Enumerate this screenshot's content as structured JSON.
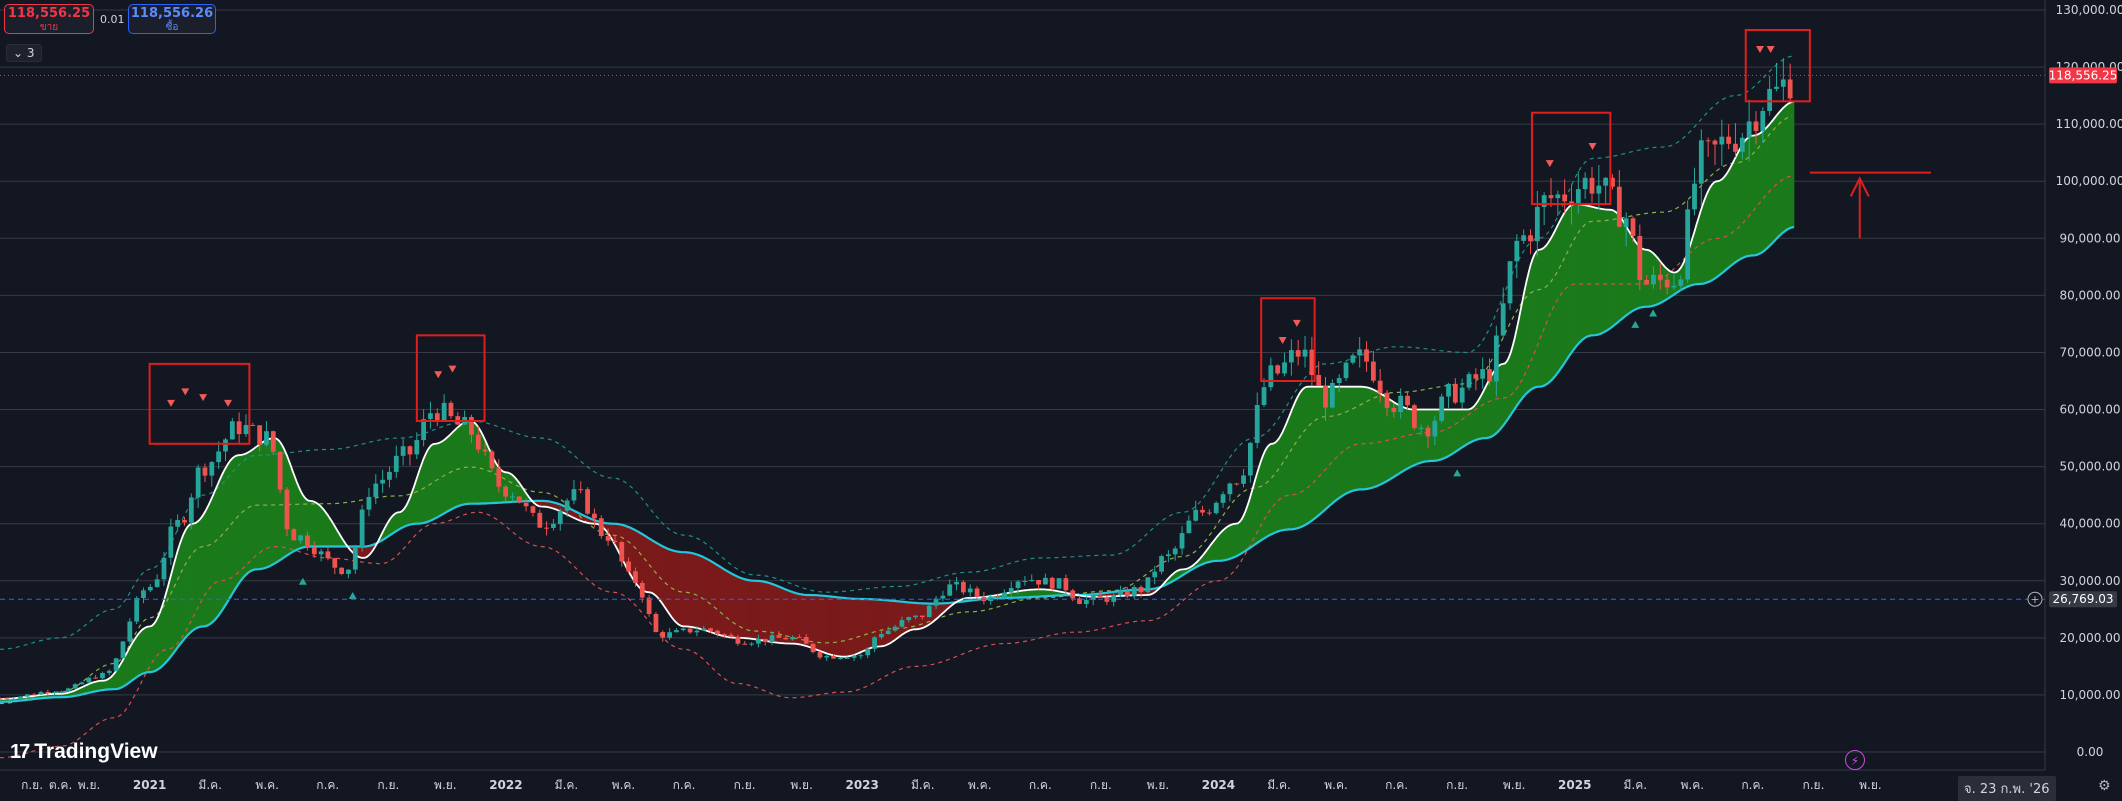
{
  "header": {
    "sell_price": "118,556.25",
    "sell_label": "ขาย",
    "buy_price": "118,556.26",
    "buy_label": "ซื้อ",
    "spread": "0.01",
    "legend_toggle": "⌄ 3"
  },
  "brand": {
    "logo_mark": "17",
    "logo_text": "TradingView"
  },
  "crosshair_date": "จ. 23 ก.พ. '26",
  "colors": {
    "background": "#131722",
    "up": "#26a69a",
    "down": "#ef5350",
    "fill_up": "#1b7a1b",
    "fill_down": "#7a1a1a",
    "fast_ma": "#ffffff",
    "slow_ma": "#26c6da",
    "annotation": "#e01e1e"
  },
  "icons": {
    "bolt": "bolt-icon",
    "settings": "gear-icon"
  },
  "chart_data": {
    "type": "candlestick",
    "timeframe": "weekly",
    "last_price_label": "118,556.25",
    "last_price": 118556.25,
    "crosshair_price_label": "26,769.03",
    "crosshair_price": 26769.03,
    "y_ticks": [
      "0.00",
      "10,000.00",
      "20,000.00",
      "30,000.00",
      "40,000.00",
      "50,000.00",
      "60,000.00",
      "70,000.00",
      "80,000.00",
      "90,000.00",
      "100,000.00",
      "110,000.00",
      "120,000.00",
      "130,000.00"
    ],
    "ylim": [
      0,
      130000
    ],
    "x_ticks": [
      {
        "label": "ต.ค.",
        "t": 2020.75
      },
      {
        "label": "ก.ค.",
        "t": 2020.5
      },
      {
        "label": "ก.ย.",
        "t": 2020.67
      },
      {
        "label": "พ.ย.",
        "t": 2020.83
      },
      {
        "label": "2021",
        "t": 2021.0
      },
      {
        "label": "มี.ค.",
        "t": 2021.17
      },
      {
        "label": "พ.ค.",
        "t": 2021.33
      },
      {
        "label": "ก.ค.",
        "t": 2021.5
      },
      {
        "label": "ก.ย.",
        "t": 2021.67
      },
      {
        "label": "พ.ย.",
        "t": 2021.83
      },
      {
        "label": "2022",
        "t": 2022.0
      },
      {
        "label": "มี.ค.",
        "t": 2022.17
      },
      {
        "label": "พ.ค.",
        "t": 2022.33
      },
      {
        "label": "ก.ค.",
        "t": 2022.5
      },
      {
        "label": "ก.ย.",
        "t": 2022.67
      },
      {
        "label": "พ.ย.",
        "t": 2022.83
      },
      {
        "label": "2023",
        "t": 2023.0
      },
      {
        "label": "มี.ค.",
        "t": 2023.17
      },
      {
        "label": "พ.ค.",
        "t": 2023.33
      },
      {
        "label": "ก.ค.",
        "t": 2023.5
      },
      {
        "label": "ก.ย.",
        "t": 2023.67
      },
      {
        "label": "พ.ย.",
        "t": 2023.83
      },
      {
        "label": "2024",
        "t": 2024.0
      },
      {
        "label": "มี.ค.",
        "t": 2024.17
      },
      {
        "label": "พ.ค.",
        "t": 2024.33
      },
      {
        "label": "ก.ค.",
        "t": 2024.5
      },
      {
        "label": "ก.ย.",
        "t": 2024.67
      },
      {
        "label": "พ.ย.",
        "t": 2024.83
      },
      {
        "label": "2025",
        "t": 2025.0
      },
      {
        "label": "มี.ค.",
        "t": 2025.17
      },
      {
        "label": "พ.ค.",
        "t": 2025.33
      },
      {
        "label": "ก.ค.",
        "t": 2025.5
      },
      {
        "label": "ก.ย.",
        "t": 2025.67
      },
      {
        "label": "พ.ย.",
        "t": 2025.83
      }
    ],
    "anchors": [
      [
        2020.58,
        9400
      ],
      [
        2020.75,
        10800
      ],
      [
        2020.87,
        13500
      ],
      [
        2021.0,
        29000
      ],
      [
        2021.08,
        40000
      ],
      [
        2021.15,
        50000
      ],
      [
        2021.25,
        57000
      ],
      [
        2021.33,
        55000
      ],
      [
        2021.4,
        38000
      ],
      [
        2021.55,
        32000
      ],
      [
        2021.63,
        47000
      ],
      [
        2021.72,
        52000
      ],
      [
        2021.8,
        60000
      ],
      [
        2021.88,
        57000
      ],
      [
        2022.0,
        46000
      ],
      [
        2022.1,
        40000
      ],
      [
        2022.2,
        45000
      ],
      [
        2022.28,
        38000
      ],
      [
        2022.36,
        30000
      ],
      [
        2022.43,
        20500
      ],
      [
        2022.55,
        21500
      ],
      [
        2022.67,
        19500
      ],
      [
        2022.8,
        20000
      ],
      [
        2022.9,
        16800
      ],
      [
        2023.0,
        17000
      ],
      [
        2023.05,
        21000
      ],
      [
        2023.15,
        23500
      ],
      [
        2023.25,
        29000
      ],
      [
        2023.35,
        27000
      ],
      [
        2023.45,
        30500
      ],
      [
        2023.55,
        29500
      ],
      [
        2023.62,
        26500
      ],
      [
        2023.7,
        27000
      ],
      [
        2023.78,
        28500
      ],
      [
        2023.85,
        34000
      ],
      [
        2023.95,
        42000
      ],
      [
        2024.05,
        48000
      ],
      [
        2024.15,
        66000
      ],
      [
        2024.23,
        70000
      ],
      [
        2024.3,
        62000
      ],
      [
        2024.4,
        69000
      ],
      [
        2024.5,
        61000
      ],
      [
        2024.58,
        57000
      ],
      [
        2024.66,
        63000
      ],
      [
        2024.75,
        66000
      ],
      [
        2024.85,
        90000
      ],
      [
        2024.93,
        97000
      ],
      [
        2025.05,
        100000
      ],
      [
        2025.13,
        95000
      ],
      [
        2025.2,
        82000
      ],
      [
        2025.28,
        83000
      ],
      [
        2025.36,
        104000
      ],
      [
        2025.45,
        108000
      ],
      [
        2025.55,
        115000
      ],
      [
        2025.62,
        118600
      ]
    ],
    "fast_ma_anchors": [
      [
        2020.58,
        9300
      ],
      [
        2020.75,
        10200
      ],
      [
        2020.87,
        12500
      ],
      [
        2021.0,
        22000
      ],
      [
        2021.12,
        40000
      ],
      [
        2021.25,
        52000
      ],
      [
        2021.35,
        55000
      ],
      [
        2021.45,
        44000
      ],
      [
        2021.6,
        34000
      ],
      [
        2021.7,
        42000
      ],
      [
        2021.8,
        54000
      ],
      [
        2021.9,
        58000
      ],
      [
        2022.0,
        49000
      ],
      [
        2022.1,
        43000
      ],
      [
        2022.25,
        40000
      ],
      [
        2022.4,
        28000
      ],
      [
        2022.5,
        22000
      ],
      [
        2022.65,
        20000
      ],
      [
        2022.8,
        19000
      ],
      [
        2022.95,
        16700
      ],
      [
        2023.05,
        18500
      ],
      [
        2023.15,
        21500
      ],
      [
        2023.3,
        27000
      ],
      [
        2023.5,
        28500
      ],
      [
        2023.65,
        27200
      ],
      [
        2023.8,
        27500
      ],
      [
        2023.9,
        32000
      ],
      [
        2024.05,
        40000
      ],
      [
        2024.15,
        54000
      ],
      [
        2024.25,
        64000
      ],
      [
        2024.4,
        64000
      ],
      [
        2024.55,
        60000
      ],
      [
        2024.7,
        60000
      ],
      [
        2024.8,
        68000
      ],
      [
        2024.9,
        88000
      ],
      [
        2025.0,
        96000
      ],
      [
        2025.1,
        95000
      ],
      [
        2025.2,
        88000
      ],
      [
        2025.28,
        84000
      ],
      [
        2025.4,
        100000
      ],
      [
        2025.5,
        108000
      ],
      [
        2025.62,
        114000
      ]
    ],
    "slow_ma_anchors": [
      [
        2020.58,
        8800
      ],
      [
        2020.75,
        9600
      ],
      [
        2020.9,
        11000
      ],
      [
        2021.0,
        14000
      ],
      [
        2021.15,
        22000
      ],
      [
        2021.3,
        32000
      ],
      [
        2021.45,
        36000
      ],
      [
        2021.6,
        36000
      ],
      [
        2021.75,
        40000
      ],
      [
        2021.9,
        43500
      ],
      [
        2022.1,
        44000
      ],
      [
        2022.3,
        40000
      ],
      [
        2022.5,
        35000
      ],
      [
        2022.7,
        30000
      ],
      [
        2022.85,
        27500
      ],
      [
        2023.0,
        26800
      ],
      [
        2023.2,
        26000
      ],
      [
        2023.4,
        27000
      ],
      [
        2023.6,
        27500
      ],
      [
        2023.8,
        28500
      ],
      [
        2024.0,
        33500
      ],
      [
        2024.2,
        39000
      ],
      [
        2024.4,
        46000
      ],
      [
        2024.6,
        51000
      ],
      [
        2024.75,
        55000
      ],
      [
        2024.9,
        64000
      ],
      [
        2025.05,
        73000
      ],
      [
        2025.2,
        78000
      ],
      [
        2025.35,
        82000
      ],
      [
        2025.5,
        87000
      ],
      [
        2025.62,
        92000
      ]
    ],
    "upper_band_anchors": [
      [
        2020.58,
        18000
      ],
      [
        2020.75,
        20000
      ],
      [
        2020.9,
        25000
      ],
      [
        2021.0,
        32000
      ],
      [
        2021.15,
        45000
      ],
      [
        2021.3,
        52000
      ],
      [
        2021.5,
        53000
      ],
      [
        2021.7,
        55000
      ],
      [
        2021.9,
        58000
      ],
      [
        2022.1,
        55000
      ],
      [
        2022.3,
        48000
      ],
      [
        2022.5,
        38000
      ],
      [
        2022.7,
        31000
      ],
      [
        2022.9,
        28000
      ],
      [
        2023.1,
        29000
      ],
      [
        2023.3,
        31500
      ],
      [
        2023.5,
        34000
      ],
      [
        2023.7,
        34500
      ],
      [
        2023.9,
        42000
      ],
      [
        2024.1,
        55000
      ],
      [
        2024.3,
        68000
      ],
      [
        2024.5,
        71000
      ],
      [
        2024.7,
        70000
      ],
      [
        2024.9,
        90000
      ],
      [
        2025.05,
        104000
      ],
      [
        2025.25,
        106000
      ],
      [
        2025.45,
        115000
      ],
      [
        2025.62,
        122000
      ]
    ],
    "lower_band_anchors": [
      [
        2020.58,
        -1000
      ],
      [
        2020.75,
        1000
      ],
      [
        2020.9,
        6000
      ],
      [
        2021.05,
        18000
      ],
      [
        2021.2,
        30000
      ],
      [
        2021.35,
        36000
      ],
      [
        2021.5,
        34000
      ],
      [
        2021.65,
        33000
      ],
      [
        2021.8,
        40000
      ],
      [
        2021.92,
        42000
      ],
      [
        2022.1,
        36000
      ],
      [
        2022.3,
        28000
      ],
      [
        2022.5,
        18000
      ],
      [
        2022.65,
        12000
      ],
      [
        2022.8,
        9500
      ],
      [
        2022.95,
        10500
      ],
      [
        2023.15,
        15000
      ],
      [
        2023.4,
        19000
      ],
      [
        2023.6,
        21000
      ],
      [
        2023.8,
        23000
      ],
      [
        2024.0,
        30000
      ],
      [
        2024.2,
        45000
      ],
      [
        2024.4,
        54000
      ],
      [
        2024.6,
        56000
      ],
      [
        2024.8,
        62000
      ],
      [
        2025.0,
        82000
      ],
      [
        2025.2,
        82000
      ],
      [
        2025.4,
        90000
      ],
      [
        2025.62,
        101000
      ]
    ],
    "annotation_boxes": [
      {
        "t0": 2021.0,
        "t1": 2021.28,
        "p0": 54000,
        "p1": 68000
      },
      {
        "t0": 2021.75,
        "t1": 2021.94,
        "p0": 58000,
        "p1": 73000
      },
      {
        "t0": 2024.12,
        "t1": 2024.27,
        "p0": 65000,
        "p1": 79500
      },
      {
        "t0": 2024.88,
        "t1": 2025.1,
        "p0": 96000,
        "p1": 112000
      },
      {
        "t0": 2025.48,
        "t1": 2025.66,
        "p0": 114000,
        "p1": 126500
      }
    ],
    "annotation_hline": {
      "t0": 2025.66,
      "t1": 2026.0,
      "p": 101500
    },
    "annotation_arrow": {
      "t": 2025.8,
      "p0": 90000,
      "p1": 100500
    },
    "down_markers": [
      [
        2021.06,
        61000
      ],
      [
        2021.1,
        63000
      ],
      [
        2021.15,
        62000
      ],
      [
        2021.22,
        61000
      ],
      [
        2021.81,
        66000
      ],
      [
        2021.85,
        67000
      ],
      [
        2024.18,
        72000
      ],
      [
        2024.22,
        75000
      ],
      [
        2024.93,
        103000
      ],
      [
        2025.05,
        106000
      ],
      [
        2025.52,
        123000
      ],
      [
        2025.55,
        123000
      ]
    ],
    "up_markers": [
      [
        2021.43,
        30000
      ],
      [
        2021.57,
        27500
      ],
      [
        2024.67,
        49000
      ],
      [
        2025.17,
        75000
      ],
      [
        2025.22,
        77000
      ]
    ]
  }
}
